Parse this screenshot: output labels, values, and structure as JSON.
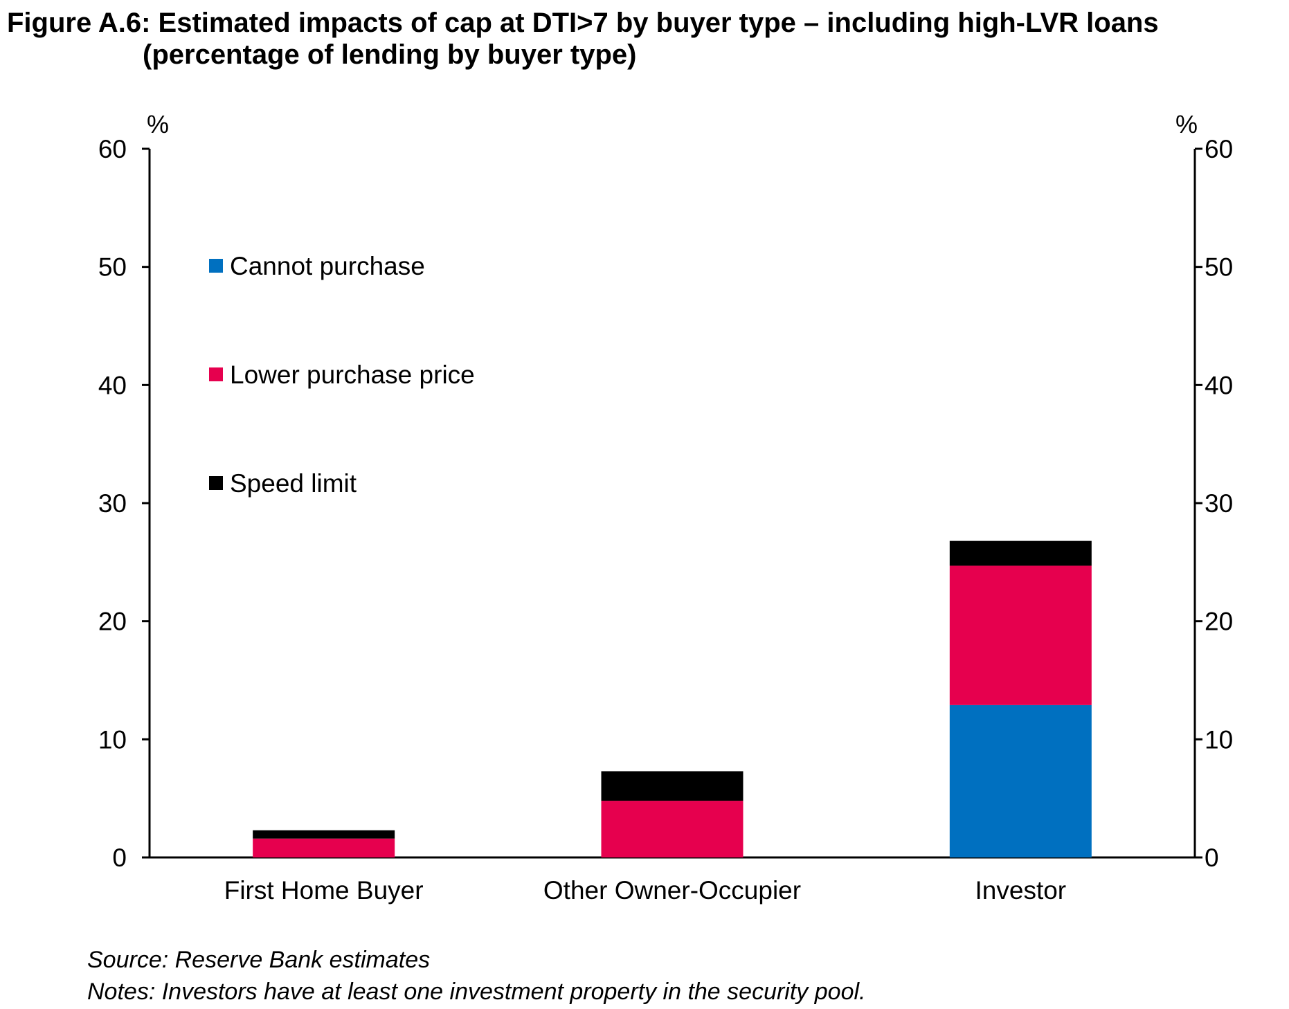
{
  "chart_data": {
    "type": "bar",
    "stacked": true,
    "title": "Figure A.6: Estimated impacts of cap at DTI>7 by buyer type – including high-LVR loans",
    "subtitle": "(percentage of lending by buyer type)",
    "left_axis_unit": "%",
    "right_axis_unit": "%",
    "ylim": [
      0,
      60
    ],
    "yticks": [
      "0",
      "10",
      "20",
      "30",
      "40",
      "50",
      "60"
    ],
    "categories": [
      "First Home Buyer",
      "Other Owner-Occupier",
      "Investor"
    ],
    "series": [
      {
        "name": "Cannot purchase",
        "color": "#0070C0",
        "values": [
          0,
          0,
          12.9
        ]
      },
      {
        "name": "Lower purchase price",
        "color": "#E6004E",
        "values": [
          1.6,
          4.8,
          11.8
        ]
      },
      {
        "name": "Speed limit",
        "color": "#000000",
        "values": [
          0.7,
          2.5,
          2.1
        ]
      }
    ],
    "legend_position": "top-left",
    "grid": false,
    "source": "Source: Reserve Bank estimates",
    "notes": "Notes: Investors have at least one investment property in the security pool."
  }
}
